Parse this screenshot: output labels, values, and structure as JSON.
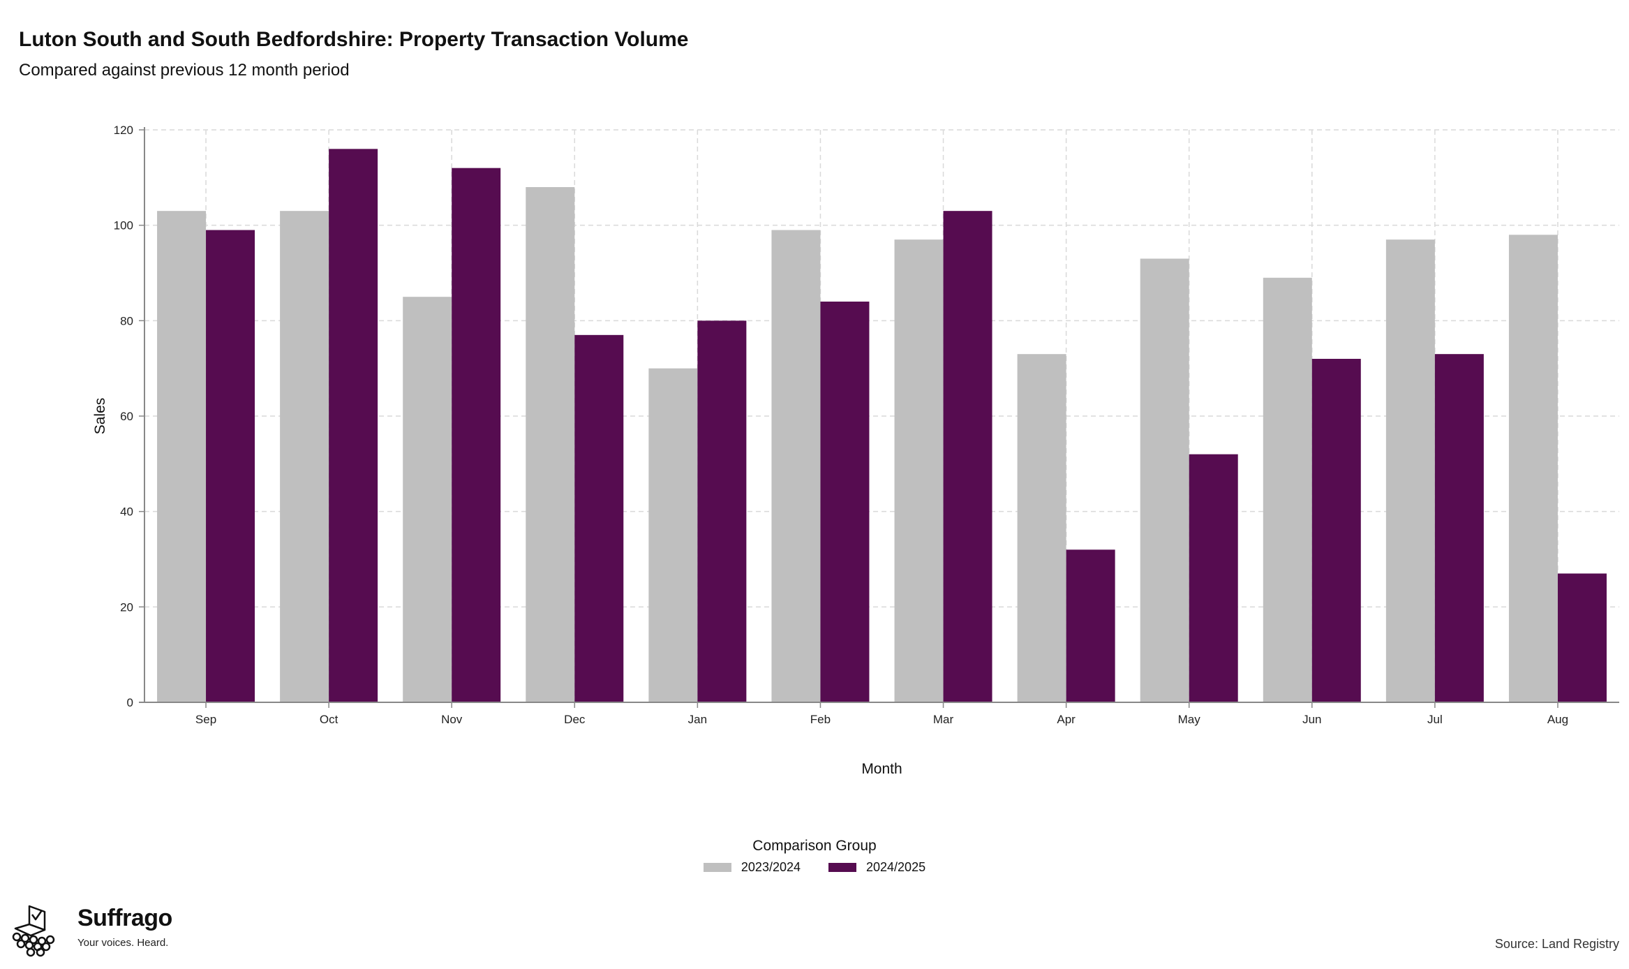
{
  "title": "Luton South and South Bedfordshire: Property Transaction Volume",
  "subtitle": "Compared against previous 12 month period",
  "brand": {
    "name": "Suffrago",
    "tagline": "Your voices. Heard.",
    "icon": "ballot-box-crowd-icon"
  },
  "source": "Source: Land Registry",
  "colors": {
    "series_2023_2024": "#bfbfbf",
    "series_2024_2025": "#560c50",
    "grid": "#d9d9d9",
    "axis": "#888888"
  },
  "legend": {
    "title": "Comparison Group",
    "placement": "bottom-center"
  },
  "chart_data": {
    "type": "bar",
    "xlabel": "Month",
    "ylabel": "Sales",
    "ylim": [
      0,
      120
    ],
    "yticks": [
      0,
      20,
      40,
      60,
      80,
      100,
      120
    ],
    "grid": true,
    "categories": [
      "Sep",
      "Oct",
      "Nov",
      "Dec",
      "Jan",
      "Feb",
      "Mar",
      "Apr",
      "May",
      "Jun",
      "Jul",
      "Aug"
    ],
    "series": [
      {
        "name": "2023/2024",
        "color": "#bfbfbf",
        "values": [
          103,
          103,
          85,
          108,
          70,
          99,
          97,
          73,
          93,
          89,
          97,
          98
        ]
      },
      {
        "name": "2024/2025",
        "color": "#560c50",
        "values": [
          99,
          116,
          112,
          77,
          80,
          84,
          103,
          32,
          52,
          72,
          73,
          27
        ]
      }
    ]
  }
}
